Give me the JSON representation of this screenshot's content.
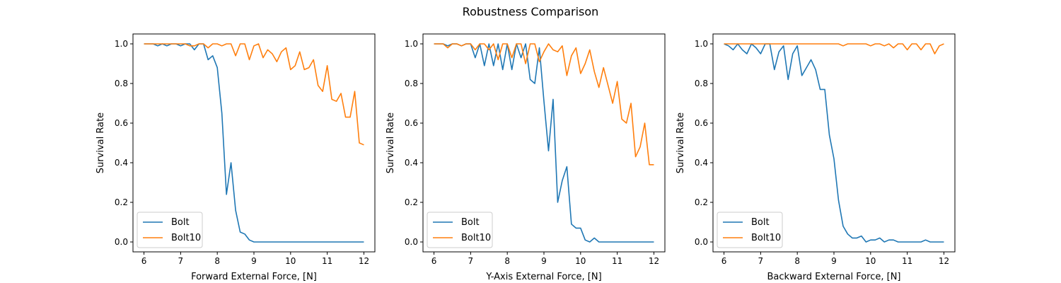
{
  "figure": {
    "title": "Robustness Comparison"
  },
  "colors": {
    "Bolt": "#1f77b4",
    "Bolt10": "#ff7f0e",
    "axes": "#000000",
    "legend_border": "#cccccc"
  },
  "chart_data": [
    {
      "type": "line",
      "title": "",
      "xlabel": "Forward External Force, [N]",
      "ylabel": "Survival Rate",
      "xlim": [
        5.7,
        12.3
      ],
      "ylim": [
        -0.05,
        1.05
      ],
      "xticks": [
        "6",
        "7",
        "8",
        "9",
        "10",
        "11",
        "12"
      ],
      "yticks": [
        "0.0",
        "0.2",
        "0.4",
        "0.6",
        "0.8",
        "1.0"
      ],
      "grid": false,
      "legend": "lower-left",
      "x": [
        6.0,
        6.125,
        6.25,
        6.375,
        6.5,
        6.625,
        6.75,
        6.875,
        7.0,
        7.125,
        7.25,
        7.375,
        7.5,
        7.625,
        7.75,
        7.875,
        8.0,
        8.125,
        8.25,
        8.375,
        8.5,
        8.625,
        8.75,
        8.875,
        9.0,
        9.125,
        9.25,
        9.375,
        9.5,
        9.625,
        9.75,
        9.875,
        10.0,
        10.125,
        10.25,
        10.375,
        10.5,
        10.625,
        10.75,
        10.875,
        11.0,
        11.125,
        11.25,
        11.375,
        11.5,
        11.625,
        11.75,
        11.875,
        12.0
      ],
      "series": [
        {
          "name": "Bolt",
          "values": [
            1.0,
            1.0,
            1.0,
            0.99,
            1.0,
            0.99,
            1.0,
            1.0,
            0.99,
            1.0,
            1.0,
            0.97,
            1.0,
            1.0,
            0.92,
            0.94,
            0.88,
            0.65,
            0.24,
            0.4,
            0.16,
            0.05,
            0.04,
            0.01,
            0.0,
            0.0,
            0.0,
            0.0,
            0.0,
            0.0,
            0.0,
            0.0,
            0.0,
            0.0,
            0.0,
            0.0,
            0.0,
            0.0,
            0.0,
            0.0,
            0.0,
            0.0,
            0.0,
            0.0,
            0.0,
            0.0,
            0.0,
            0.0,
            0.0
          ]
        },
        {
          "name": "Bolt10",
          "values": [
            1.0,
            1.0,
            1.0,
            1.0,
            1.0,
            1.0,
            1.0,
            1.0,
            1.0,
            1.0,
            0.99,
            0.99,
            1.0,
            1.0,
            0.98,
            1.0,
            1.0,
            0.99,
            1.0,
            1.0,
            0.94,
            1.0,
            1.0,
            0.92,
            0.99,
            1.0,
            0.93,
            0.97,
            0.95,
            0.91,
            0.96,
            0.98,
            0.87,
            0.89,
            0.96,
            0.87,
            0.88,
            0.92,
            0.79,
            0.76,
            0.89,
            0.72,
            0.71,
            0.75,
            0.63,
            0.63,
            0.76,
            0.5,
            0.49
          ]
        }
      ]
    },
    {
      "type": "line",
      "title": "",
      "xlabel": "Y-Axis External Force, [N]",
      "ylabel": "Survival Rate",
      "xlim": [
        5.7,
        12.3
      ],
      "ylim": [
        -0.05,
        1.05
      ],
      "xticks": [
        "6",
        "7",
        "8",
        "9",
        "10",
        "11",
        "12"
      ],
      "yticks": [
        "0.0",
        "0.2",
        "0.4",
        "0.6",
        "0.8",
        "1.0"
      ],
      "grid": false,
      "legend": "lower-left",
      "x": [
        6.0,
        6.125,
        6.25,
        6.375,
        6.5,
        6.625,
        6.75,
        6.875,
        7.0,
        7.125,
        7.25,
        7.375,
        7.5,
        7.625,
        7.75,
        7.875,
        8.0,
        8.125,
        8.25,
        8.375,
        8.5,
        8.625,
        8.75,
        8.875,
        9.0,
        9.125,
        9.25,
        9.375,
        9.5,
        9.625,
        9.75,
        9.875,
        10.0,
        10.125,
        10.25,
        10.375,
        10.5,
        10.625,
        10.75,
        10.875,
        11.0,
        11.125,
        11.25,
        11.375,
        11.5,
        11.625,
        11.75,
        11.875,
        12.0
      ],
      "series": [
        {
          "name": "Bolt",
          "values": [
            1.0,
            1.0,
            1.0,
            0.99,
            1.0,
            1.0,
            0.99,
            1.0,
            1.0,
            0.93,
            1.0,
            0.89,
            1.0,
            0.89,
            1.0,
            0.87,
            1.0,
            0.87,
            1.0,
            0.93,
            1.0,
            0.82,
            0.8,
            0.98,
            0.71,
            0.46,
            0.72,
            0.2,
            0.31,
            0.38,
            0.09,
            0.07,
            0.07,
            0.01,
            0.0,
            0.02,
            0.0,
            0.0,
            0.0,
            0.0,
            0.0,
            0.0,
            0.0,
            0.0,
            0.0,
            0.0,
            0.0,
            0.0,
            0.0
          ]
        },
        {
          "name": "Bolt10",
          "values": [
            1.0,
            1.0,
            1.0,
            0.98,
            1.0,
            1.0,
            0.99,
            1.0,
            1.0,
            0.97,
            1.0,
            1.0,
            0.97,
            1.0,
            0.92,
            1.0,
            1.0,
            0.93,
            1.0,
            1.0,
            0.9,
            1.0,
            1.0,
            0.91,
            0.96,
            1.0,
            0.97,
            0.96,
            0.99,
            0.84,
            0.94,
            0.98,
            0.85,
            0.9,
            0.97,
            0.86,
            0.78,
            0.88,
            0.79,
            0.7,
            0.81,
            0.62,
            0.6,
            0.7,
            0.43,
            0.48,
            0.6,
            0.39,
            0.39
          ]
        }
      ]
    },
    {
      "type": "line",
      "title": "",
      "xlabel": "Backward External Force, [N]",
      "ylabel": "Survival Rate",
      "xlim": [
        5.7,
        12.3
      ],
      "ylim": [
        -0.05,
        1.05
      ],
      "xticks": [
        "6",
        "7",
        "8",
        "9",
        "10",
        "11",
        "12"
      ],
      "yticks": [
        "0.0",
        "0.2",
        "0.4",
        "0.6",
        "0.8",
        "1.0"
      ],
      "grid": false,
      "legend": "lower-left",
      "x": [
        6.0,
        6.125,
        6.25,
        6.375,
        6.5,
        6.625,
        6.75,
        6.875,
        7.0,
        7.125,
        7.25,
        7.375,
        7.5,
        7.625,
        7.75,
        7.875,
        8.0,
        8.125,
        8.25,
        8.375,
        8.5,
        8.625,
        8.75,
        8.875,
        9.0,
        9.125,
        9.25,
        9.375,
        9.5,
        9.625,
        9.75,
        9.875,
        10.0,
        10.125,
        10.25,
        10.375,
        10.5,
        10.625,
        10.75,
        10.875,
        11.0,
        11.125,
        11.25,
        11.375,
        11.5,
        11.625,
        11.75,
        11.875,
        12.0
      ],
      "series": [
        {
          "name": "Bolt",
          "values": [
            1.0,
            0.99,
            0.97,
            1.0,
            0.97,
            0.95,
            1.0,
            0.98,
            0.95,
            1.0,
            1.0,
            0.87,
            0.96,
            0.99,
            0.82,
            0.95,
            0.99,
            0.84,
            0.88,
            0.92,
            0.87,
            0.77,
            0.77,
            0.54,
            0.42,
            0.21,
            0.08,
            0.04,
            0.02,
            0.02,
            0.03,
            0.0,
            0.01,
            0.01,
            0.02,
            0.0,
            0.01,
            0.01,
            0.0,
            0.0,
            0.0,
            0.0,
            0.0,
            0.0,
            0.01,
            0.0,
            0.0,
            0.0,
            0.0
          ]
        },
        {
          "name": "Bolt10",
          "values": [
            1.0,
            1.0,
            1.0,
            1.0,
            1.0,
            1.0,
            1.0,
            1.0,
            1.0,
            1.0,
            1.0,
            1.0,
            1.0,
            1.0,
            1.0,
            1.0,
            1.0,
            1.0,
            1.0,
            1.0,
            1.0,
            1.0,
            1.0,
            1.0,
            1.0,
            1.0,
            0.99,
            1.0,
            1.0,
            1.0,
            1.0,
            1.0,
            0.99,
            1.0,
            1.0,
            0.99,
            1.0,
            0.98,
            1.0,
            1.0,
            0.97,
            1.0,
            1.0,
            0.97,
            1.0,
            1.0,
            0.95,
            0.99,
            1.0
          ]
        }
      ]
    }
  ]
}
